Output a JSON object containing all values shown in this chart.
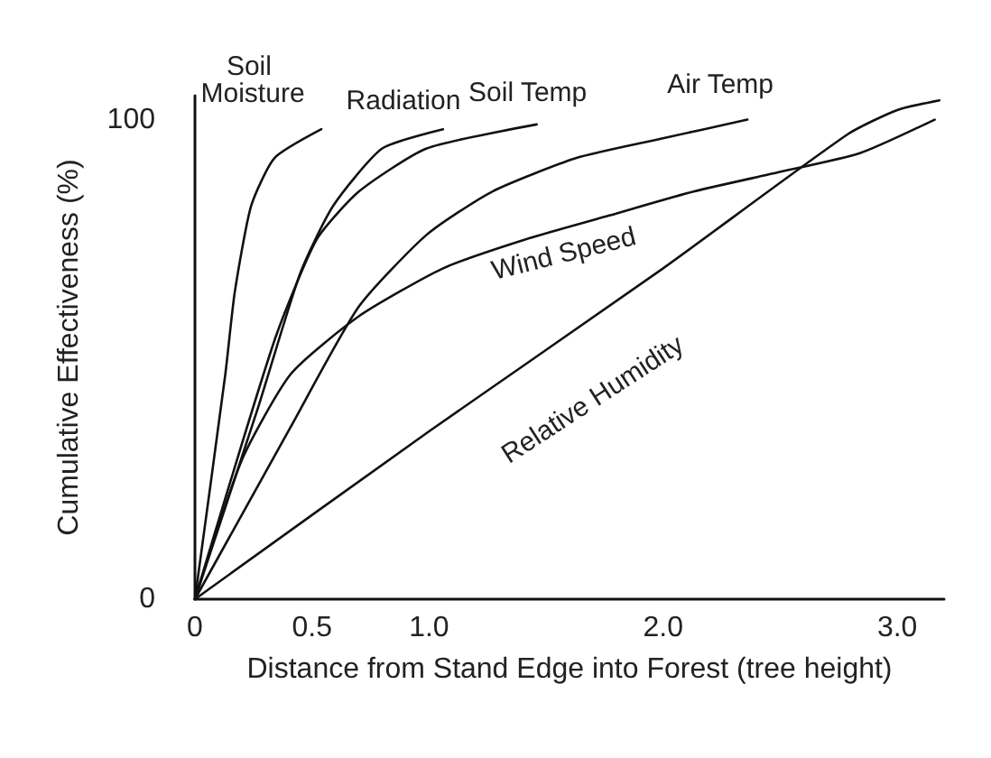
{
  "chart_data": {
    "type": "line",
    "xlabel": "Distance from Stand Edge into Forest (tree height)",
    "ylabel": "Cumulative Effectiveness (%)",
    "xlim": [
      0,
      3.2
    ],
    "xticks": [
      0,
      0.5,
      {
        "value": 1,
        "label": "1.0"
      },
      {
        "value": 2,
        "label": "2.0"
      },
      {
        "value": 3,
        "label": "3.0"
      }
    ],
    "ylim": [
      0,
      105
    ],
    "yticks": [
      0,
      100
    ],
    "grid": false,
    "legend": false,
    "marker": "none",
    "line_style": "solid",
    "series": [
      {
        "name": "Soil Moisture",
        "color": "#111111",
        "x": [
          0,
          0.13,
          0.17,
          0.24,
          0.34,
          0.54
        ],
        "values": [
          0,
          47,
          64,
          82,
          92,
          98
        ]
      },
      {
        "name": "Radiation",
        "color": "#111111",
        "x": [
          0,
          0.27,
          0.45,
          0.59,
          0.8,
          1.06
        ],
        "values": [
          0,
          40,
          68,
          82,
          94,
          98
        ]
      },
      {
        "name": "Soil Temp",
        "color": "#111111",
        "x": [
          0,
          0.34,
          0.52,
          0.7,
          0.99,
          1.46
        ],
        "values": [
          0,
          54,
          75,
          85,
          94,
          99
        ]
      },
      {
        "name": "Air Temp",
        "color": "#111111",
        "x": [
          0,
          0.41,
          0.7,
          0.99,
          1.27,
          1.63,
          1.99,
          2.36
        ],
        "values": [
          0,
          36,
          61,
          76,
          85,
          92,
          96,
          100
        ]
      },
      {
        "name": "Wind Speed",
        "color": "#111111",
        "x": [
          0,
          0.2,
          0.41,
          0.7,
          1.06,
          1.41,
          1.77,
          2.13,
          2.49,
          2.84,
          3.16
        ],
        "values": [
          0,
          29,
          47,
          59,
          69,
          75,
          80,
          85,
          89,
          93,
          100
        ]
      },
      {
        "name": "Relative Humidity",
        "color": "#111111",
        "x": [
          0,
          1.0,
          2.0,
          2.79,
          3.0,
          3.18
        ],
        "values": [
          0,
          35,
          69,
          97,
          102,
          104
        ]
      }
    ]
  }
}
